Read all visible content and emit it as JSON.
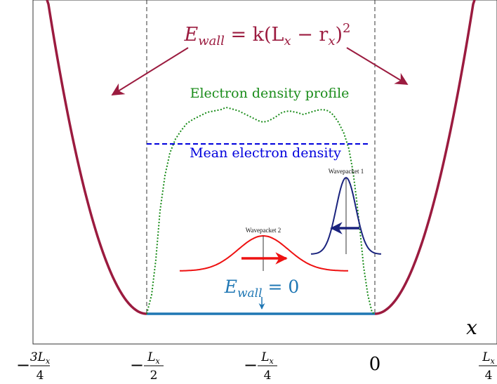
{
  "labels": {
    "wall_energy": "E_wall = k(L_x − r_x)^2",
    "wall_energy_parts": {
      "E": "E",
      "sub": "wall",
      "rest": " = k(L",
      "sub2": "x",
      "mid": " − r",
      "sub3": "x",
      "tail": ")",
      "sup": "2"
    },
    "wall_zero_parts": {
      "E": "E",
      "sub": "wall",
      "rest": " = 0"
    },
    "electron_density_profile": "Electron density profile",
    "mean_electron_density": "Mean electron density",
    "wavepacket_1": "Wavepacket 1",
    "wavepacket_2": "Wavepacket 2",
    "x_axis_label": "x"
  },
  "ticks": [
    {
      "prefix": "−",
      "num": "3L",
      "num_sub": "x",
      "den": "4"
    },
    {
      "prefix": "−",
      "num": "L",
      "num_sub": "x",
      "den": "2"
    },
    {
      "prefix": "−",
      "num": "L",
      "num_sub": "x",
      "den": "4"
    },
    {
      "prefix": "",
      "num": "0",
      "num_sub": "",
      "den": ""
    },
    {
      "prefix": "",
      "num": "L",
      "num_sub": "x",
      "den": "4"
    }
  ],
  "colors": {
    "wall": "#9b1b3f",
    "density_profile": "#1a8c1a",
    "mean_density": "#0000dd",
    "wavepacket_1": "#1a237e",
    "wavepacket_2": "#ee1111",
    "floor": "#1f77b4",
    "e_wall_zero": "#1f77b4"
  }
}
